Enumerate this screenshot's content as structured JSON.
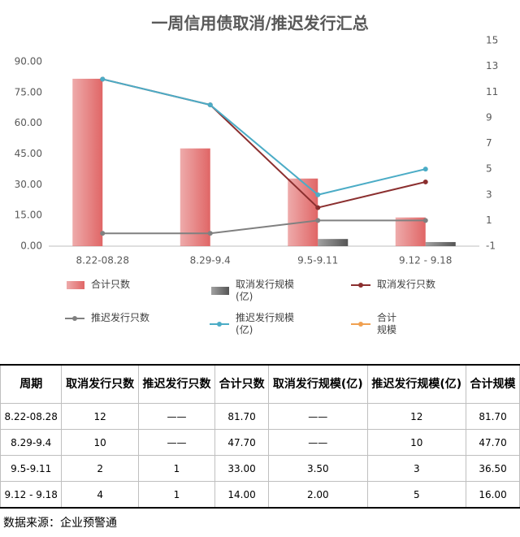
{
  "chart_data": {
    "type": "bar_line",
    "title": "一周信用债取消/推迟发行汇总",
    "categories": [
      "8.22-08.28",
      "8.29-9.4",
      "9.5-9.11",
      "9.12 - 9.18"
    ],
    "ylim": [
      0,
      90
    ],
    "yticks": [
      {
        "value": 0,
        "label": "0.00"
      },
      {
        "value": 15,
        "label": "15.00"
      },
      {
        "value": 30,
        "label": "30.00"
      },
      {
        "value": 45,
        "label": "45.00"
      },
      {
        "value": 60,
        "label": "60.00"
      },
      {
        "value": 75,
        "label": "75.00"
      },
      {
        "value": 90,
        "label": "90.00"
      }
    ],
    "y2lim": [
      -1,
      15
    ],
    "y2ticks": [
      -1,
      1,
      3,
      5,
      7,
      9,
      11,
      13,
      15
    ],
    "grid": false,
    "series": [
      {
        "name": "合计只数",
        "type": "bar",
        "color": "#e06666",
        "values": [
          81.7,
          47.7,
          33,
          14
        ]
      },
      {
        "name": "取消发行规模(亿)",
        "type": "bar",
        "color": "#555555",
        "values": [
          null,
          null,
          3.5,
          2
        ]
      },
      {
        "name": "取消发行只数",
        "type": "line",
        "axis": "y2",
        "color": "#8b2f2f",
        "values": [
          12,
          10,
          2,
          4
        ]
      },
      {
        "name": "推迟发行只数",
        "type": "line",
        "axis": "y2",
        "color": "#808080",
        "values": [
          0,
          0,
          1,
          1
        ]
      },
      {
        "name": "推迟发行规模(亿)",
        "type": "line",
        "axis": "y2",
        "color": "#4bacc6",
        "values": [
          12,
          10,
          3,
          5
        ]
      },
      {
        "name": "合计规模",
        "type": "line",
        "axis": "y2",
        "color": "#f0a050",
        "values": [
          null,
          null,
          null,
          null
        ]
      }
    ]
  },
  "table": {
    "header": [
      "周期",
      "取消发行只数",
      "推迟发行只数",
      "合计只数",
      "取消发行规模(亿)",
      "推迟发行规模(亿)",
      "合计规模"
    ],
    "rows": [
      [
        "8.22-08.28",
        "12",
        "——",
        "81.70",
        "——",
        "12",
        "81.70"
      ],
      [
        "8.29-9.4",
        "10",
        "——",
        "47.70",
        "——",
        "10",
        "47.70"
      ],
      [
        "9.5-9.11",
        "2",
        "1",
        "33.00",
        "3.50",
        "3",
        "36.50"
      ],
      [
        "9.12 - 9.18",
        "4",
        "1",
        "14.00",
        "2.00",
        "5",
        "16.00"
      ]
    ]
  },
  "source": "数据来源：企业预警通"
}
